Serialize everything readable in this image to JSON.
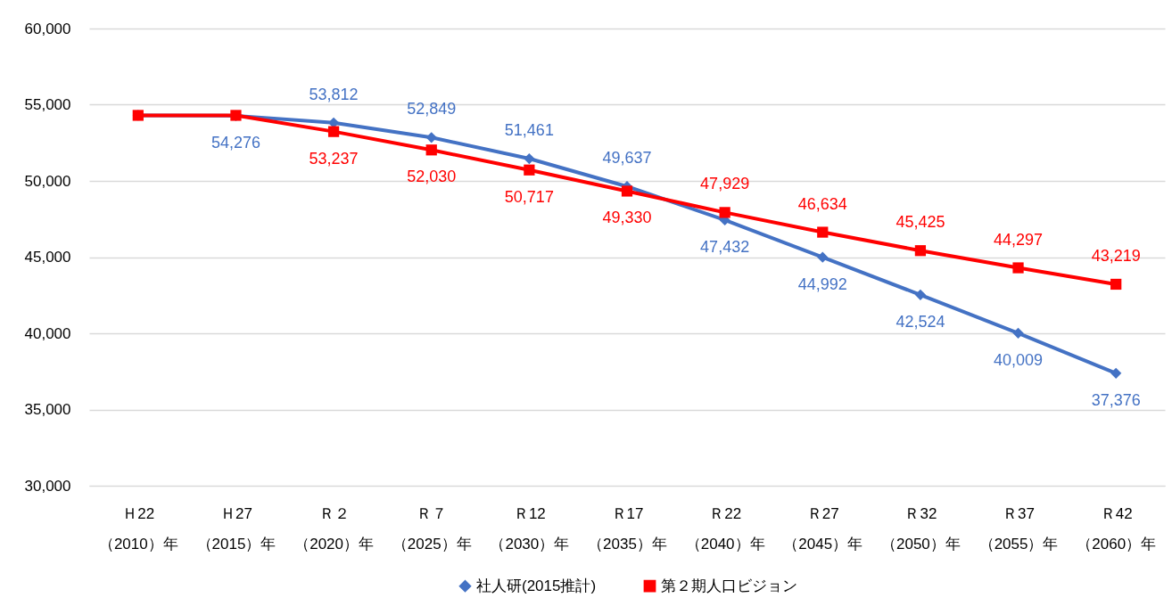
{
  "chart_data": {
    "type": "line",
    "categories": [
      "Ｈ22\n（2010）年",
      "Ｈ27\n（2015）年",
      "Ｒ２（2020）年",
      "Ｒ７（2025）年",
      "Ｒ12\n（2030）年",
      "Ｒ17\n（2035）年",
      "Ｒ22\n（2040）年",
      "Ｒ27\n（2045）年",
      "Ｒ32\n（2050）年",
      "Ｒ37\n（2055）年",
      "Ｒ42\n（2060）年"
    ],
    "series": [
      {
        "name": "社人研(2015推計)",
        "color": "#4472c4",
        "marker": "diamond",
        "values": [
          54300,
          54276,
          53812,
          52849,
          51461,
          49637,
          47432,
          44992,
          42524,
          40009,
          37376
        ],
        "value_labels": [
          null,
          "54,276",
          "53,812",
          "52,849",
          "51,461",
          "49,637",
          "47,432",
          "44,992",
          "42,524",
          "40,009",
          "37,376"
        ]
      },
      {
        "name": "第２期人口ビジョン",
        "color": "#ff0000",
        "marker": "square",
        "values": [
          54300,
          54300,
          53237,
          52030,
          50717,
          49330,
          47929,
          46634,
          45425,
          44297,
          43219
        ],
        "value_labels": [
          null,
          null,
          "53,237",
          "52,030",
          "50,717",
          "49,330",
          "47,929",
          "46,634",
          "45,425",
          "44,297",
          "43,219"
        ]
      }
    ],
    "ylim": [
      30000,
      60000
    ],
    "yticks": [
      {
        "value": 30000,
        "label": "30,000"
      },
      {
        "value": 35000,
        "label": "35,000"
      },
      {
        "value": 40000,
        "label": "40,000"
      },
      {
        "value": 45000,
        "label": "45,000"
      },
      {
        "value": 50000,
        "label": "50,000"
      },
      {
        "value": 55000,
        "label": "55,000"
      },
      {
        "value": 60000,
        "label": "60,000"
      }
    ],
    "grid": "y",
    "legend": "bottom",
    "line_style": "solid"
  }
}
